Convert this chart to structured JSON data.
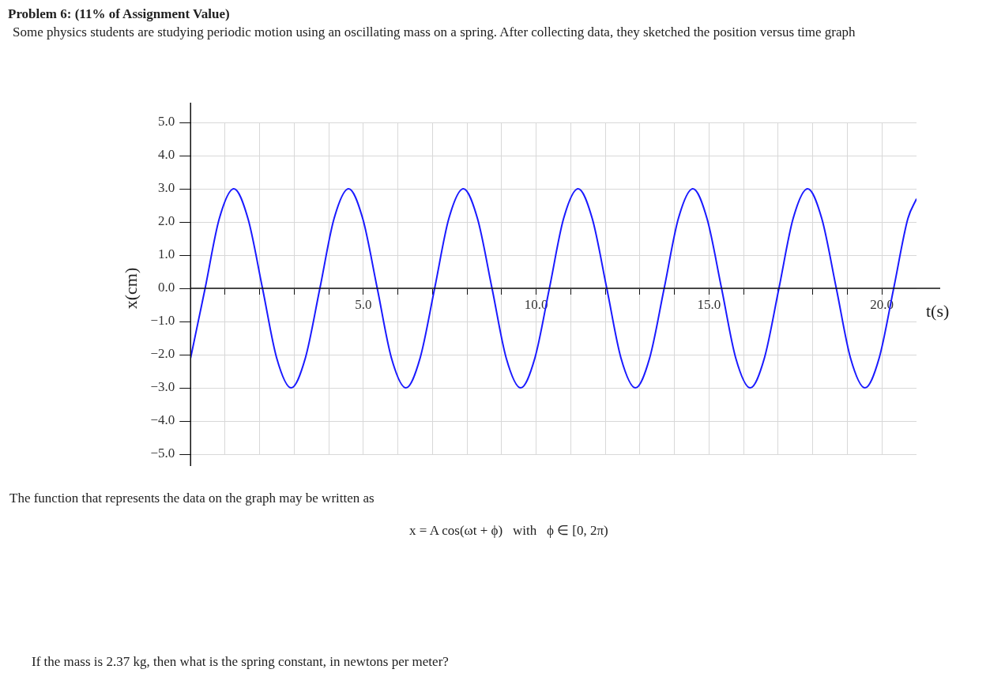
{
  "chart_data": {
    "type": "line",
    "title": "Problem 6: (11% of Assignment Value)",
    "subtitle": "Some physics students are studying periodic motion using an oscillating mass on a spring. After collecting data, they sketched the position versus time graph",
    "xlabel": "t(s)",
    "ylabel": "x(cm)",
    "annotations": [
      "The function that represents the data on the graph may be written as",
      "x = A cos(ωt + ϕ)   with   ϕ ∈ [0, 2π)",
      "If the mass is 2.37 kg, then what is the spring constant, in newtons per meter?"
    ],
    "x": [
      0,
      0.42,
      0.83,
      1.25,
      1.66,
      2.08,
      2.49,
      2.91,
      3.32,
      3.74,
      4.15,
      4.57,
      4.98,
      5.4,
      5.81,
      6.23,
      6.64,
      7.06,
      7.47,
      7.89,
      8.3,
      8.72,
      9.13,
      9.55,
      9.96,
      10.38,
      10.79,
      11.21,
      11.62,
      12.04,
      12.45,
      12.87,
      13.28,
      13.7,
      14.11,
      14.53,
      14.94,
      15.36,
      15.77,
      16.19,
      16.6,
      17.02,
      17.43,
      17.85,
      18.26,
      18.68,
      19.09,
      19.51,
      19.92,
      20.34,
      20.75,
      21
    ],
    "series": [
      {
        "color": "#1a1aff",
        "values": [
          -2.1,
          0,
          2.1,
          3,
          2.1,
          0,
          -2.1,
          -3,
          -2.1,
          0,
          2.1,
          3,
          2.1,
          0,
          -2.1,
          -3,
          -2.1,
          0,
          2.1,
          3,
          2.1,
          0,
          -2.1,
          -3,
          -2.1,
          0,
          2.1,
          3,
          2.1,
          0,
          -2.1,
          -3,
          -2.1,
          0,
          2.1,
          3,
          2.1,
          0,
          -2.1,
          -3,
          -2.1,
          0,
          2.1,
          3,
          2.1,
          0,
          -2.1,
          -3,
          -2.1,
          0,
          2.1,
          2.7
        ]
      }
    ],
    "xlim": [
      0,
      21
    ],
    "ylim": [
      -5,
      5
    ],
    "xticks": [
      {
        "value": 1,
        "label": null
      },
      {
        "value": 2,
        "label": null
      },
      {
        "value": 3,
        "label": null
      },
      {
        "value": 4,
        "label": null
      },
      {
        "value": 5,
        "label": "5.0"
      },
      {
        "value": 6,
        "label": null
      },
      {
        "value": 7,
        "label": null
      },
      {
        "value": 8,
        "label": null
      },
      {
        "value": 9,
        "label": null
      },
      {
        "value": 10,
        "label": "10.0"
      },
      {
        "value": 11,
        "label": null
      },
      {
        "value": 12,
        "label": null
      },
      {
        "value": 13,
        "label": null
      },
      {
        "value": 14,
        "label": null
      },
      {
        "value": 15,
        "label": "15.0"
      },
      {
        "value": 16,
        "label": null
      },
      {
        "value": 17,
        "label": null
      },
      {
        "value": 18,
        "label": null
      },
      {
        "value": 19,
        "label": null
      },
      {
        "value": 20,
        "label": "20.0"
      }
    ],
    "yticks": [
      {
        "value": -5,
        "label": "−5.0"
      },
      {
        "value": -4,
        "label": "−4.0"
      },
      {
        "value": -3,
        "label": "−3.0"
      },
      {
        "value": -2,
        "label": "−2.0"
      },
      {
        "value": -1,
        "label": "−1.0"
      },
      {
        "value": 0,
        "label": "0.0"
      },
      {
        "value": 1,
        "label": "1.0"
      },
      {
        "value": 2,
        "label": "2.0"
      },
      {
        "value": 3,
        "label": "3.0"
      },
      {
        "value": 4,
        "label": "4.0"
      },
      {
        "value": 5,
        "label": "5.0"
      }
    ],
    "grid": true,
    "legend": false,
    "marker": "none",
    "line_style": "solid"
  }
}
